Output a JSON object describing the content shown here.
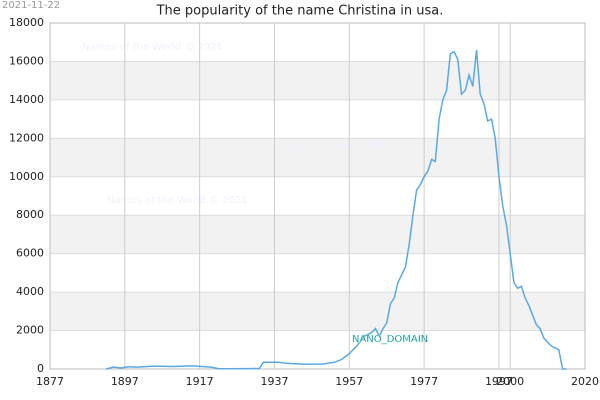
{
  "chart_data": {
    "type": "line",
    "title": "The popularity of the name Christina in usa.",
    "date_stamp": "2021-11-22",
    "watermarks": [
      "Names of the World © 2021",
      "Names of the World © 2021",
      "Names of the World © 2021"
    ],
    "annotation": "NANO_DOMAIN",
    "grid": true,
    "xlim": [
      1877,
      2020
    ],
    "xticks": [
      1877,
      1897,
      1917,
      1937,
      1957,
      1977,
      1997,
      2000,
      2020
    ],
    "ylim": [
      0,
      18000
    ],
    "yticks": [
      0,
      2000,
      4000,
      6000,
      8000,
      10000,
      12000,
      14000,
      16000,
      18000
    ],
    "series": [
      {
        "color": "#5aa9e6",
        "x": [
          1892,
          1894,
          1896,
          1898,
          1900,
          1905,
          1910,
          1915,
          1920,
          1922,
          1925,
          1930,
          1933,
          1934,
          1938,
          1940,
          1945,
          1950,
          1953,
          1955,
          1957,
          1959,
          1961,
          1962,
          1963,
          1964,
          1965,
          1966,
          1967,
          1968,
          1969,
          1970,
          1971,
          1972,
          1973,
          1974,
          1975,
          1976,
          1977,
          1978,
          1979,
          1980,
          1981,
          1982,
          1983,
          1984,
          1985,
          1986,
          1987,
          1988,
          1989,
          1990,
          1991,
          1992,
          1993,
          1994,
          1995,
          1996,
          1997,
          1998,
          1999,
          2000,
          2001,
          2002,
          2003,
          2004,
          2005,
          2006,
          2007,
          2008,
          2009,
          2010,
          2011,
          2012,
          2013,
          2014,
          2015
        ],
        "values": [
          0,
          100,
          50,
          120,
          100,
          150,
          130,
          160,
          100,
          20,
          10,
          20,
          30,
          350,
          350,
          300,
          250,
          260,
          350,
          500,
          800,
          1200,
          1700,
          1800,
          1900,
          2100,
          1700,
          2100,
          2400,
          3400,
          3700,
          4500,
          4900,
          5300,
          6500,
          8000,
          9300,
          9600,
          10000,
          10300,
          10900,
          10800,
          13000,
          14000,
          14500,
          16400,
          16500,
          16100,
          14300,
          14500,
          15300,
          14700,
          16600,
          14300,
          13800,
          12900,
          13000,
          12000,
          10000,
          8500,
          7500,
          6000,
          4500,
          4200,
          4300,
          3700,
          3300,
          2800,
          2300,
          2100,
          1600,
          1400,
          1200,
          1100,
          1000,
          0,
          0
        ]
      }
    ]
  }
}
